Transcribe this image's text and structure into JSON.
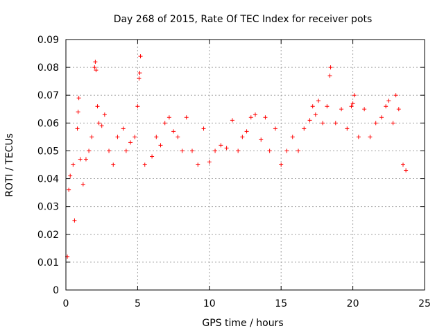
{
  "chart_data": {
    "type": "scatter",
    "title": "Day 268 of 2015, Rate Of TEC Index for receiver pots",
    "xlabel": "GPS time / hours",
    "ylabel": "ROTI / TECUs",
    "xlim": [
      0,
      25
    ],
    "ylim": [
      0,
      0.09
    ],
    "x_ticks": [
      0,
      5,
      10,
      15,
      20,
      25
    ],
    "y_ticks": [
      0,
      0.01,
      0.02,
      0.03,
      0.04,
      0.05,
      0.06,
      0.07,
      0.08,
      0.09
    ],
    "x_tick_labels": [
      "0",
      "5",
      "10",
      "15",
      "20",
      "25"
    ],
    "y_tick_labels": [
      "0",
      "0.01",
      "0.02",
      "0.03",
      "0.04",
      "0.05",
      "0.06",
      "0.07",
      "0.08",
      "0.09"
    ],
    "grid": true,
    "marker": "+",
    "series_color": "#ff0000",
    "series": [
      {
        "name": "ROTI",
        "points": [
          [
            0.1,
            0.012
          ],
          [
            0.2,
            0.036
          ],
          [
            0.3,
            0.041
          ],
          [
            0.5,
            0.045
          ],
          [
            0.6,
            0.025
          ],
          [
            0.8,
            0.058
          ],
          [
            0.85,
            0.064
          ],
          [
            0.9,
            0.069
          ],
          [
            1.0,
            0.047
          ],
          [
            1.2,
            0.038
          ],
          [
            1.4,
            0.047
          ],
          [
            1.6,
            0.05
          ],
          [
            1.8,
            0.055
          ],
          [
            2.0,
            0.08
          ],
          [
            2.05,
            0.082
          ],
          [
            2.1,
            0.079
          ],
          [
            2.2,
            0.066
          ],
          [
            2.3,
            0.06
          ],
          [
            2.5,
            0.059
          ],
          [
            2.7,
            0.063
          ],
          [
            3.0,
            0.05
          ],
          [
            3.3,
            0.045
          ],
          [
            3.6,
            0.055
          ],
          [
            4.0,
            0.058
          ],
          [
            4.2,
            0.05
          ],
          [
            4.5,
            0.053
          ],
          [
            4.8,
            0.055
          ],
          [
            5.0,
            0.066
          ],
          [
            5.1,
            0.076
          ],
          [
            5.15,
            0.078
          ],
          [
            5.2,
            0.084
          ],
          [
            5.5,
            0.045
          ],
          [
            6.0,
            0.048
          ],
          [
            6.3,
            0.055
          ],
          [
            6.6,
            0.052
          ],
          [
            6.9,
            0.06
          ],
          [
            7.2,
            0.062
          ],
          [
            7.5,
            0.057
          ],
          [
            7.8,
            0.055
          ],
          [
            8.1,
            0.05
          ],
          [
            8.4,
            0.062
          ],
          [
            8.8,
            0.05
          ],
          [
            9.2,
            0.045
          ],
          [
            9.6,
            0.058
          ],
          [
            10.0,
            0.046
          ],
          [
            10.4,
            0.05
          ],
          [
            10.8,
            0.052
          ],
          [
            11.2,
            0.051
          ],
          [
            11.6,
            0.061
          ],
          [
            12.0,
            0.05
          ],
          [
            12.3,
            0.055
          ],
          [
            12.6,
            0.057
          ],
          [
            12.9,
            0.062
          ],
          [
            13.2,
            0.063
          ],
          [
            13.6,
            0.054
          ],
          [
            13.9,
            0.062
          ],
          [
            14.2,
            0.05
          ],
          [
            14.6,
            0.058
          ],
          [
            15.0,
            0.045
          ],
          [
            15.4,
            0.05
          ],
          [
            15.8,
            0.055
          ],
          [
            16.2,
            0.05
          ],
          [
            16.6,
            0.058
          ],
          [
            17.0,
            0.061
          ],
          [
            17.2,
            0.066
          ],
          [
            17.4,
            0.063
          ],
          [
            17.6,
            0.068
          ],
          [
            17.9,
            0.06
          ],
          [
            18.2,
            0.066
          ],
          [
            18.4,
            0.077
          ],
          [
            18.45,
            0.08
          ],
          [
            18.8,
            0.06
          ],
          [
            19.2,
            0.065
          ],
          [
            19.6,
            0.058
          ],
          [
            19.9,
            0.066
          ],
          [
            20.0,
            0.067
          ],
          [
            20.1,
            0.07
          ],
          [
            20.4,
            0.055
          ],
          [
            20.8,
            0.065
          ],
          [
            21.2,
            0.055
          ],
          [
            21.6,
            0.06
          ],
          [
            22.0,
            0.062
          ],
          [
            22.3,
            0.066
          ],
          [
            22.5,
            0.068
          ],
          [
            22.8,
            0.06
          ],
          [
            23.0,
            0.07
          ],
          [
            23.2,
            0.065
          ],
          [
            23.5,
            0.045
          ],
          [
            23.7,
            0.043
          ]
        ]
      }
    ]
  }
}
